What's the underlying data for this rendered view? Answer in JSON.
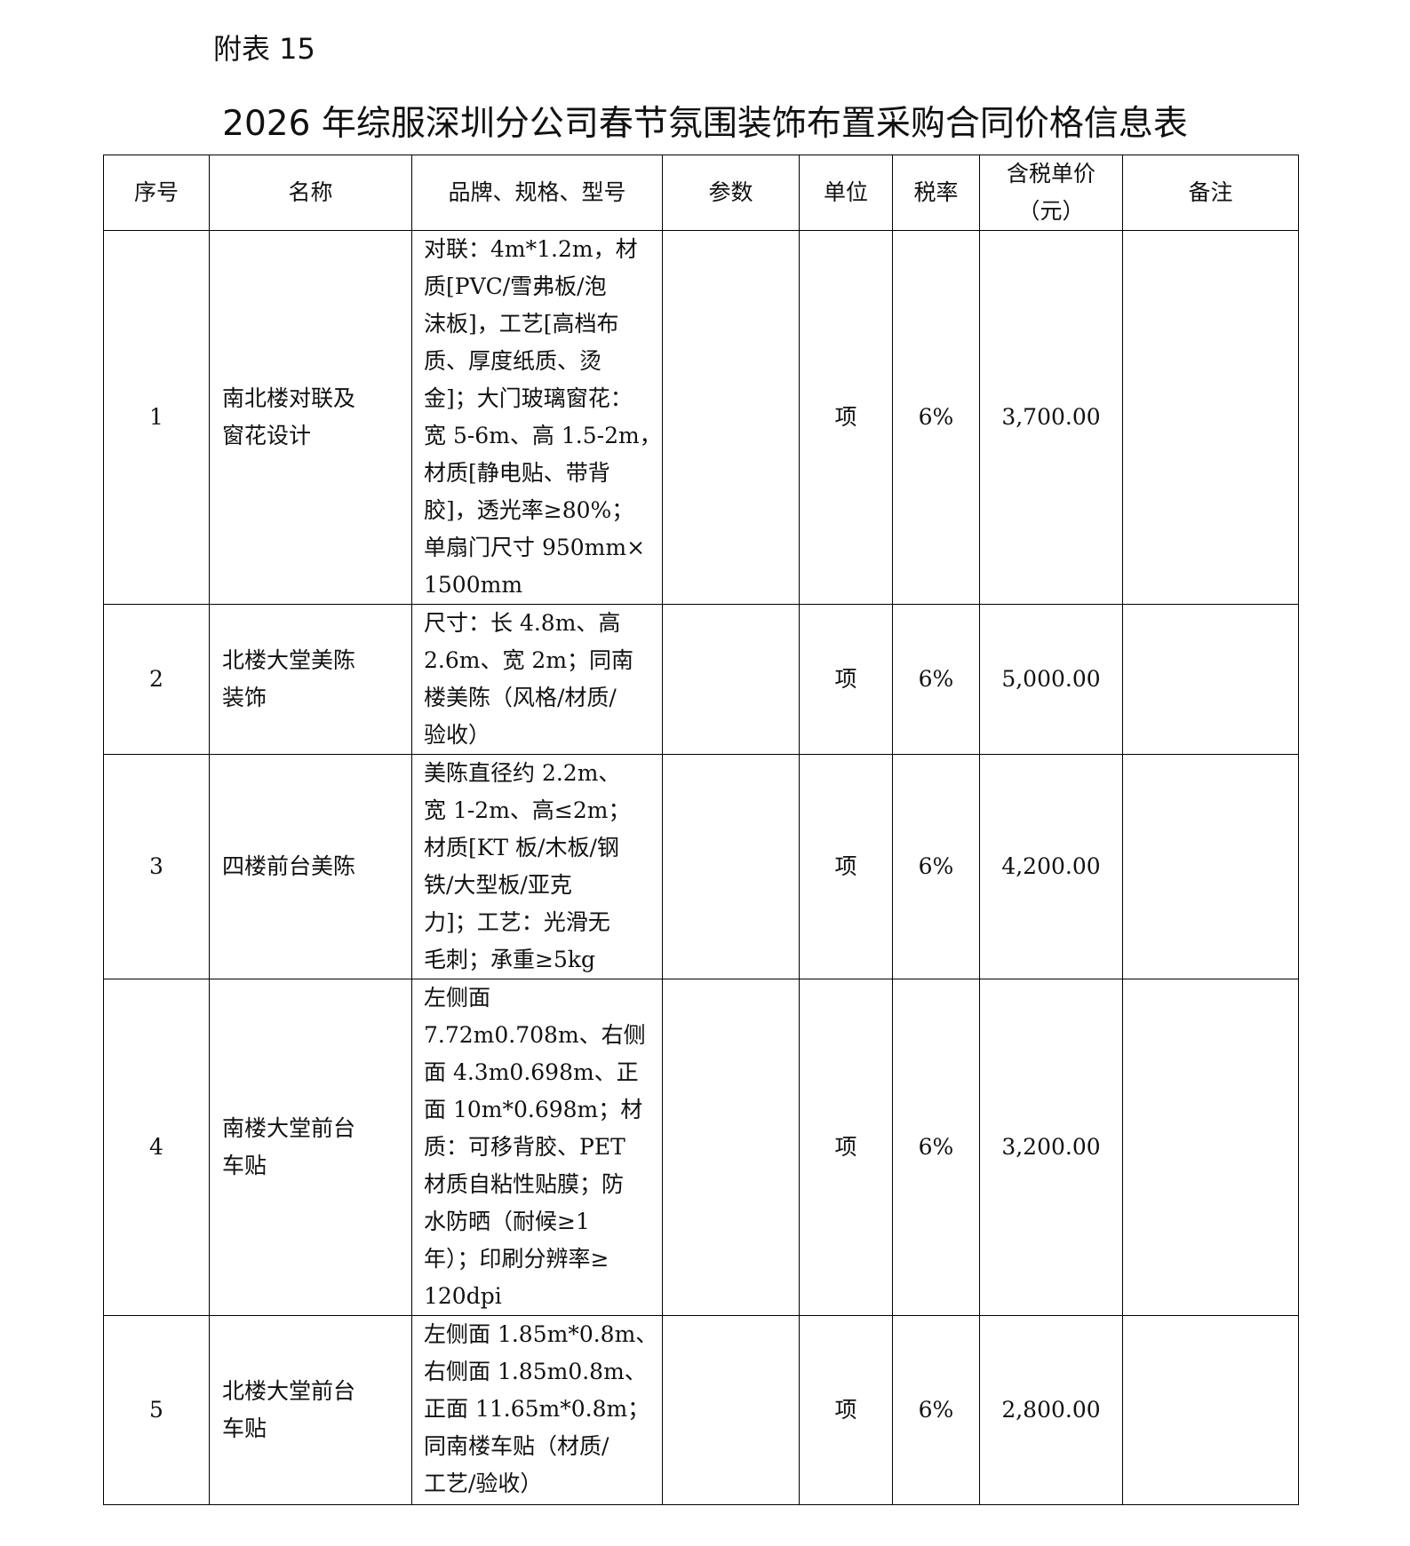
{
  "annex_label": "附表 15",
  "title": "2026 年综服深圳分公司春节氛围装饰布置采购合同价格信息表",
  "table": {
    "headers": [
      "序号",
      "名称",
      "品牌、规格、型号",
      "参数",
      "单位",
      "税率",
      "含税单价",
      "（元）",
      "备注"
    ],
    "rows": [
      {
        "no": "1",
        "name": [
          "南北楼对联及",
          "窗花设计"
        ],
        "spec": [
          "对联：4m*1.2m，材",
          "质[PVC/雪弗板/泡",
          "沫板]，工艺[高档布",
          "质、厚度纸质、烫",
          "金]；大门玻璃窗花：",
          "宽 5-6m、高 1.5-2m，",
          "材质[静电贴、带背",
          "胶]，透光率≥80%；",
          "单扇门尺寸 950mm×",
          "1500mm"
        ],
        "param": "",
        "unit": "项",
        "tax": "6%",
        "price": "3,700.00",
        "note": ""
      },
      {
        "no": "2",
        "name": [
          "北楼大堂美陈",
          "装饰"
        ],
        "spec": [
          "尺寸：长 4.8m、高",
          "2.6m、宽 2m；同南",
          "楼美陈（风格/材质/",
          "验收）"
        ],
        "param": "",
        "unit": "项",
        "tax": "6%",
        "price": "5,000.00",
        "note": ""
      },
      {
        "no": "3",
        "name": [
          "四楼前台美陈"
        ],
        "spec": [
          "美陈直径约 2.2m、",
          "宽 1-2m、高≤2m；",
          "材质[KT 板/木板/钢",
          "铁/大型板/亚克",
          "力]；工艺：光滑无",
          "毛刺；承重≥5kg"
        ],
        "param": "",
        "unit": "项",
        "tax": "6%",
        "price": "4,200.00",
        "note": ""
      },
      {
        "no": "4",
        "name": [
          "南楼大堂前台",
          "车贴"
        ],
        "spec": [
          "左侧面",
          "7.72m0.708m、右侧",
          "面 4.3m0.698m、正",
          "面 10m*0.698m；材",
          "质：可移背胶、PET",
          "材质自粘性贴膜；防",
          "水防晒（耐候≥1",
          "年）；印刷分辨率≥",
          "120dpi"
        ],
        "param": "",
        "unit": "项",
        "tax": "6%",
        "price": "3,200.00",
        "note": ""
      },
      {
        "no": "5",
        "name": [
          "北楼大堂前台",
          "车贴"
        ],
        "spec": [
          "左侧面 1.85m*0.8m、",
          "右侧面 1.85m0.8m、",
          "正面 11.65m*0.8m；",
          "同南楼车贴（材质/",
          "工艺/验收）"
        ],
        "param": "",
        "unit": "项",
        "tax": "6%",
        "price": "2,800.00",
        "note": ""
      }
    ]
  }
}
